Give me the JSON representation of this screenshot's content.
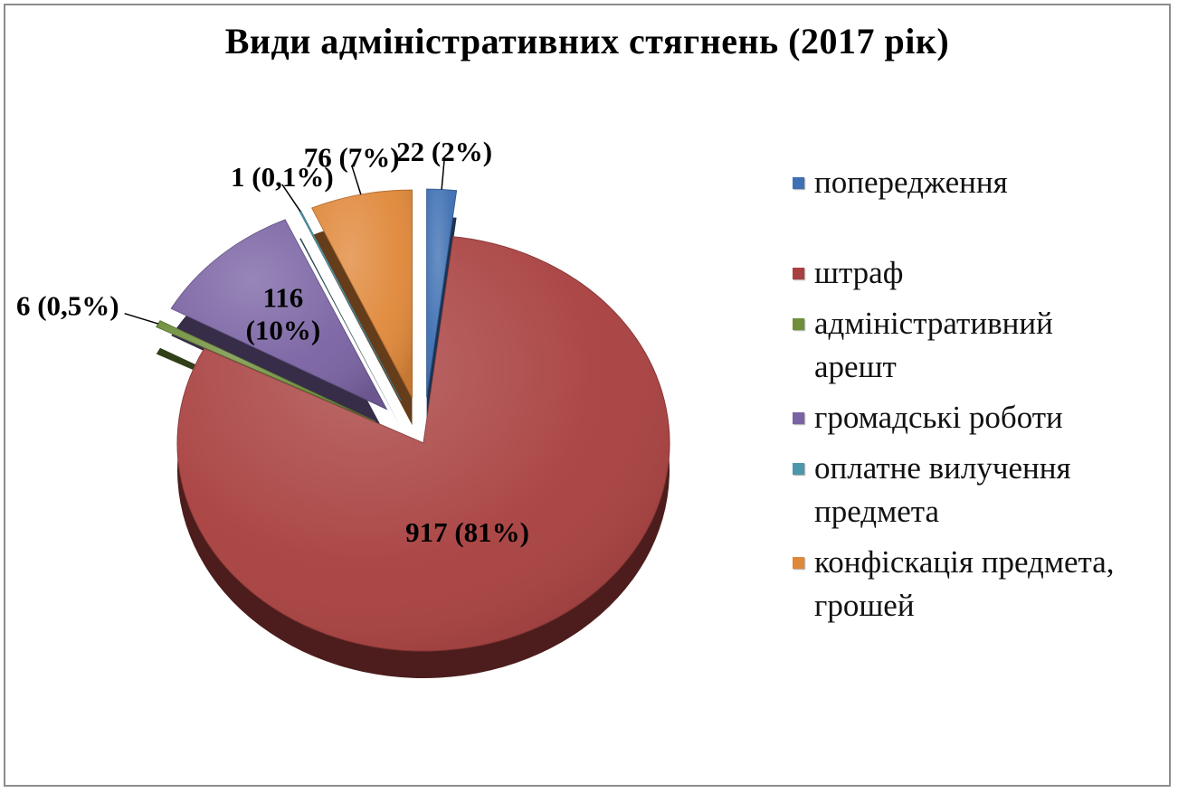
{
  "chart_data": {
    "type": "pie",
    "title": "Види адміністративних  стягнень (2017 рік)",
    "start_angle_deg": 0,
    "slices": [
      {
        "name": "попередження",
        "value": 22,
        "label": "22 (2%)",
        "color": "#3f70b3",
        "explode": 1
      },
      {
        "name": "штраф",
        "value": 917,
        "label": "917 (81%)",
        "color": "#a8403f",
        "explode": 0
      },
      {
        "name": "адміністративний арешт",
        "value": 6,
        "label": "6 (0,5%)",
        "color": "#6f8f3a",
        "explode": 1
      },
      {
        "name": "громадські роботи",
        "value": 116,
        "label": "116 (10%)",
        "label_lines": [
          "116",
          "(10%)"
        ],
        "color": "#7a63a3",
        "explode": 1
      },
      {
        "name": "оплатне вилучення предмета",
        "value": 1,
        "label": "1 (0,1%)",
        "color": "#4c97ac",
        "explode": 1
      },
      {
        "name": "конфіскація предмета, грошей",
        "value": 76,
        "label": "76 (7%)",
        "color": "#e0883a",
        "explode": 1
      }
    ],
    "legend": {
      "placement": "right",
      "items": [
        {
          "lines": [
            "попередження"
          ],
          "color": "#3f70b3"
        },
        {
          "lines": [
            "штраф"
          ],
          "color": "#a8403f"
        },
        {
          "lines": [
            "адміністративний",
            "арешт"
          ],
          "color": "#6f8f3a"
        },
        {
          "lines": [
            "громадські роботи"
          ],
          "color": "#7a63a3"
        },
        {
          "lines": [
            "оплатне вилучення",
            "предмета"
          ],
          "color": "#4c97ac"
        },
        {
          "lines": [
            "конфіскація предмета,",
            "грошей"
          ],
          "color": "#e0883a"
        }
      ]
    }
  }
}
